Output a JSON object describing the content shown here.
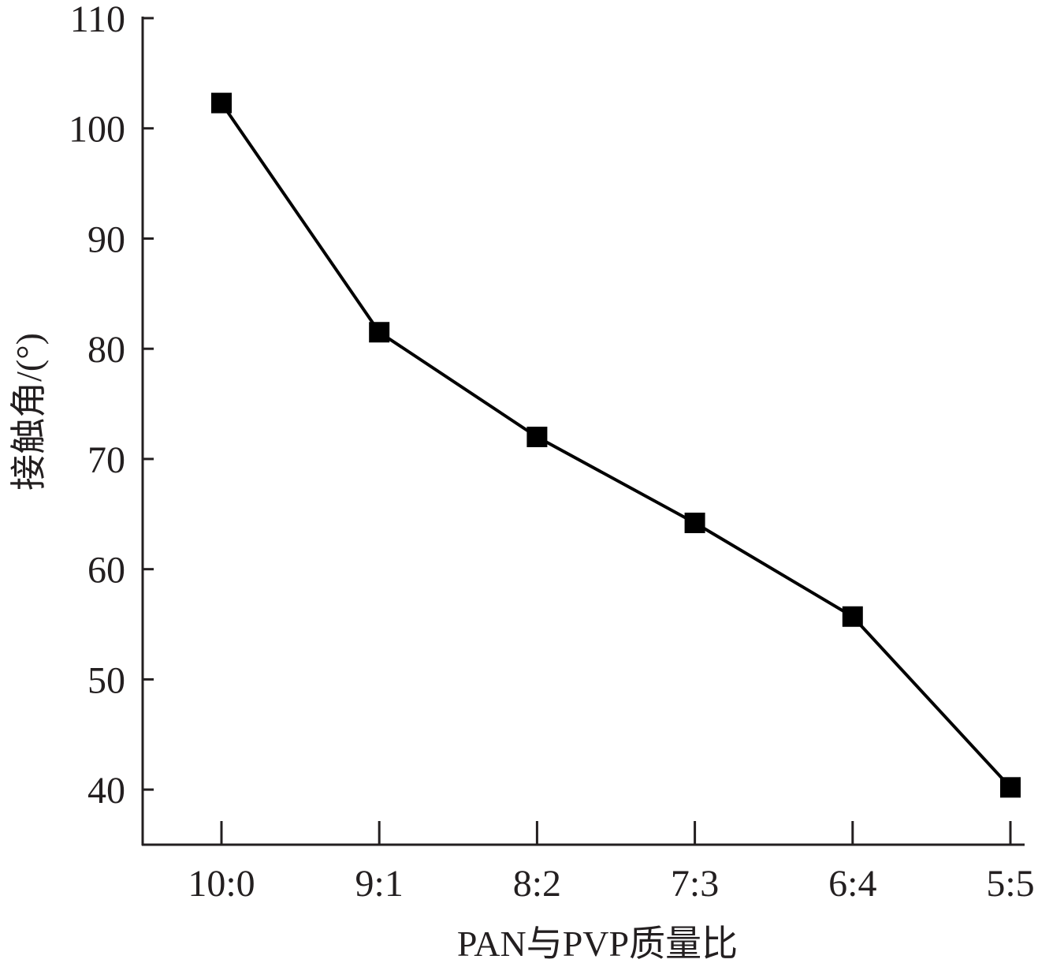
{
  "chart_data": {
    "type": "line",
    "title": "",
    "xlabel": "PAN与PVP质量比",
    "ylabel": "接触角/(°)",
    "categories": [
      "10:0",
      "9:1",
      "8:2",
      "7:3",
      "6:4",
      "5:5"
    ],
    "series": [
      {
        "name": "接触角",
        "values": [
          102.3,
          81.5,
          72.0,
          64.2,
          55.7,
          40.2
        ],
        "marker": "square",
        "color": "#000000"
      }
    ],
    "ylim": [
      35,
      110
    ],
    "yticks": [
      40,
      50,
      60,
      70,
      80,
      90,
      100,
      110
    ],
    "grid": false,
    "legend": "none"
  }
}
